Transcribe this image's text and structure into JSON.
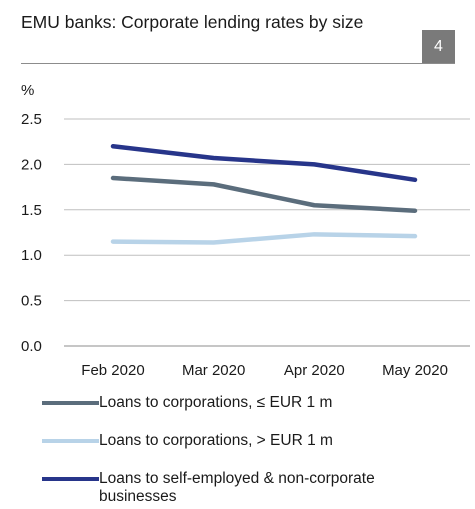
{
  "header": {
    "title": "EMU banks: Corporate lending rates by size",
    "badge": "4"
  },
  "chart_data": {
    "type": "line",
    "unit_label": "%",
    "x": [
      "Feb 2020",
      "Mar 2020",
      "Apr 2020",
      "May 2020"
    ],
    "y_ticks": [
      "0.0",
      "0.5",
      "1.0",
      "1.5",
      "2.0",
      "2.5"
    ],
    "ylim": [
      0,
      2.5
    ],
    "grid": true,
    "legend_position": "bottom",
    "series": [
      {
        "name": "Loans to corporations, ≤ EUR 1 m",
        "color": "#5b6d7c",
        "values": [
          1.85,
          1.78,
          1.55,
          1.49
        ]
      },
      {
        "name": "Loans to corporations, > EUR 1 m",
        "color": "#b8d3e8",
        "values": [
          1.15,
          1.14,
          1.23,
          1.21
        ]
      },
      {
        "name": "Loans to self-employed & non-corporate businesses",
        "color": "#27358a",
        "values": [
          2.2,
          2.07,
          2.0,
          1.83
        ]
      }
    ]
  }
}
